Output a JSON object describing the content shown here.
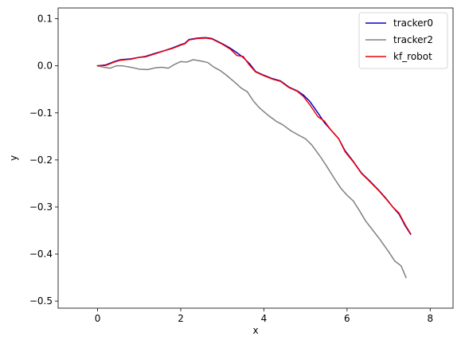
{
  "chart_data": {
    "type": "line",
    "title": "",
    "xlabel": "x",
    "ylabel": "y",
    "xlim": [
      -0.95,
      8.55
    ],
    "ylim": [
      -0.515,
      0.123
    ],
    "xticks": [
      0,
      2,
      4,
      6,
      8
    ],
    "xtick_labels": [
      "0",
      "2",
      "4",
      "6",
      "8"
    ],
    "yticks": [
      -0.5,
      -0.4,
      -0.3,
      -0.2,
      -0.1,
      0.0,
      0.1
    ],
    "ytick_labels": [
      "−0.5",
      "−0.4",
      "−0.3",
      "−0.2",
      "−0.1",
      "0.0",
      "0.1"
    ],
    "grid": false,
    "legend": "top-right",
    "series": [
      {
        "name": "tracker0",
        "color": "#0000cc",
        "points": [
          [
            0.0,
            0.0
          ],
          [
            0.2,
            0.002
          ],
          [
            0.4,
            0.009
          ],
          [
            0.55,
            0.013
          ],
          [
            0.8,
            0.015
          ],
          [
            1.0,
            0.018
          ],
          [
            1.15,
            0.02
          ],
          [
            1.4,
            0.027
          ],
          [
            1.6,
            0.032
          ],
          [
            1.8,
            0.038
          ],
          [
            2.0,
            0.045
          ],
          [
            2.1,
            0.048
          ],
          [
            2.2,
            0.056
          ],
          [
            2.4,
            0.059
          ],
          [
            2.6,
            0.06
          ],
          [
            2.75,
            0.058
          ],
          [
            3.0,
            0.047
          ],
          [
            3.2,
            0.037
          ],
          [
            3.35,
            0.028
          ],
          [
            3.5,
            0.018
          ],
          [
            3.65,
            0.005
          ],
          [
            3.8,
            -0.012
          ],
          [
            4.0,
            -0.02
          ],
          [
            4.2,
            -0.027
          ],
          [
            4.4,
            -0.032
          ],
          [
            4.6,
            -0.045
          ],
          [
            4.8,
            -0.053
          ],
          [
            4.95,
            -0.062
          ],
          [
            5.1,
            -0.075
          ],
          [
            5.3,
            -0.1
          ],
          [
            5.45,
            -0.12
          ],
          [
            5.6,
            -0.135
          ],
          [
            5.8,
            -0.155
          ],
          [
            5.95,
            -0.18
          ],
          [
            6.15,
            -0.203
          ],
          [
            6.35,
            -0.228
          ],
          [
            6.55,
            -0.245
          ],
          [
            6.75,
            -0.263
          ],
          [
            6.95,
            -0.283
          ],
          [
            7.1,
            -0.3
          ],
          [
            7.25,
            -0.315
          ],
          [
            7.4,
            -0.34
          ],
          [
            7.53,
            -0.358
          ]
        ]
      },
      {
        "name": "tracker2",
        "color": "#808080",
        "points": [
          [
            0.0,
            0.0
          ],
          [
            0.15,
            -0.003
          ],
          [
            0.3,
            -0.005
          ],
          [
            0.45,
            0.0
          ],
          [
            0.6,
            0.0
          ],
          [
            0.8,
            -0.003
          ],
          [
            1.0,
            -0.007
          ],
          [
            1.2,
            -0.008
          ],
          [
            1.4,
            -0.004
          ],
          [
            1.55,
            -0.003
          ],
          [
            1.7,
            -0.005
          ],
          [
            1.85,
            0.003
          ],
          [
            2.0,
            0.009
          ],
          [
            2.15,
            0.008
          ],
          [
            2.3,
            0.013
          ],
          [
            2.5,
            0.01
          ],
          [
            2.65,
            0.007
          ],
          [
            2.8,
            -0.003
          ],
          [
            2.95,
            -0.01
          ],
          [
            3.1,
            -0.02
          ],
          [
            3.3,
            -0.035
          ],
          [
            3.45,
            -0.047
          ],
          [
            3.6,
            -0.055
          ],
          [
            3.75,
            -0.075
          ],
          [
            3.9,
            -0.09
          ],
          [
            4.1,
            -0.105
          ],
          [
            4.3,
            -0.118
          ],
          [
            4.45,
            -0.125
          ],
          [
            4.65,
            -0.138
          ],
          [
            4.85,
            -0.148
          ],
          [
            5.0,
            -0.155
          ],
          [
            5.15,
            -0.168
          ],
          [
            5.35,
            -0.192
          ],
          [
            5.5,
            -0.212
          ],
          [
            5.7,
            -0.24
          ],
          [
            5.85,
            -0.26
          ],
          [
            6.0,
            -0.275
          ],
          [
            6.15,
            -0.287
          ],
          [
            6.3,
            -0.308
          ],
          [
            6.45,
            -0.33
          ],
          [
            6.6,
            -0.347
          ],
          [
            6.8,
            -0.37
          ],
          [
            7.0,
            -0.395
          ],
          [
            7.15,
            -0.415
          ],
          [
            7.3,
            -0.425
          ],
          [
            7.42,
            -0.45
          ]
        ]
      },
      {
        "name": "kf_robot",
        "color": "#ee0000",
        "points": [
          [
            0.0,
            0.0
          ],
          [
            0.2,
            0.001
          ],
          [
            0.4,
            0.008
          ],
          [
            0.55,
            0.012
          ],
          [
            0.8,
            0.014
          ],
          [
            1.0,
            0.018
          ],
          [
            1.15,
            0.019
          ],
          [
            1.4,
            0.026
          ],
          [
            1.6,
            0.032
          ],
          [
            1.8,
            0.037
          ],
          [
            2.0,
            0.044
          ],
          [
            2.1,
            0.047
          ],
          [
            2.2,
            0.055
          ],
          [
            2.4,
            0.058
          ],
          [
            2.6,
            0.059
          ],
          [
            2.75,
            0.057
          ],
          [
            3.0,
            0.046
          ],
          [
            3.2,
            0.035
          ],
          [
            3.35,
            0.022
          ],
          [
            3.5,
            0.02
          ],
          [
            3.65,
            0.002
          ],
          [
            3.8,
            -0.013
          ],
          [
            4.0,
            -0.021
          ],
          [
            4.2,
            -0.028
          ],
          [
            4.4,
            -0.033
          ],
          [
            4.6,
            -0.046
          ],
          [
            4.8,
            -0.054
          ],
          [
            4.95,
            -0.065
          ],
          [
            5.1,
            -0.082
          ],
          [
            5.3,
            -0.108
          ],
          [
            5.45,
            -0.117
          ],
          [
            5.6,
            -0.135
          ],
          [
            5.8,
            -0.155
          ],
          [
            5.95,
            -0.182
          ],
          [
            6.15,
            -0.204
          ],
          [
            6.35,
            -0.229
          ],
          [
            6.55,
            -0.246
          ],
          [
            6.75,
            -0.264
          ],
          [
            6.95,
            -0.284
          ],
          [
            7.1,
            -0.3
          ],
          [
            7.25,
            -0.313
          ],
          [
            7.4,
            -0.338
          ],
          [
            7.53,
            -0.357
          ]
        ]
      }
    ]
  }
}
